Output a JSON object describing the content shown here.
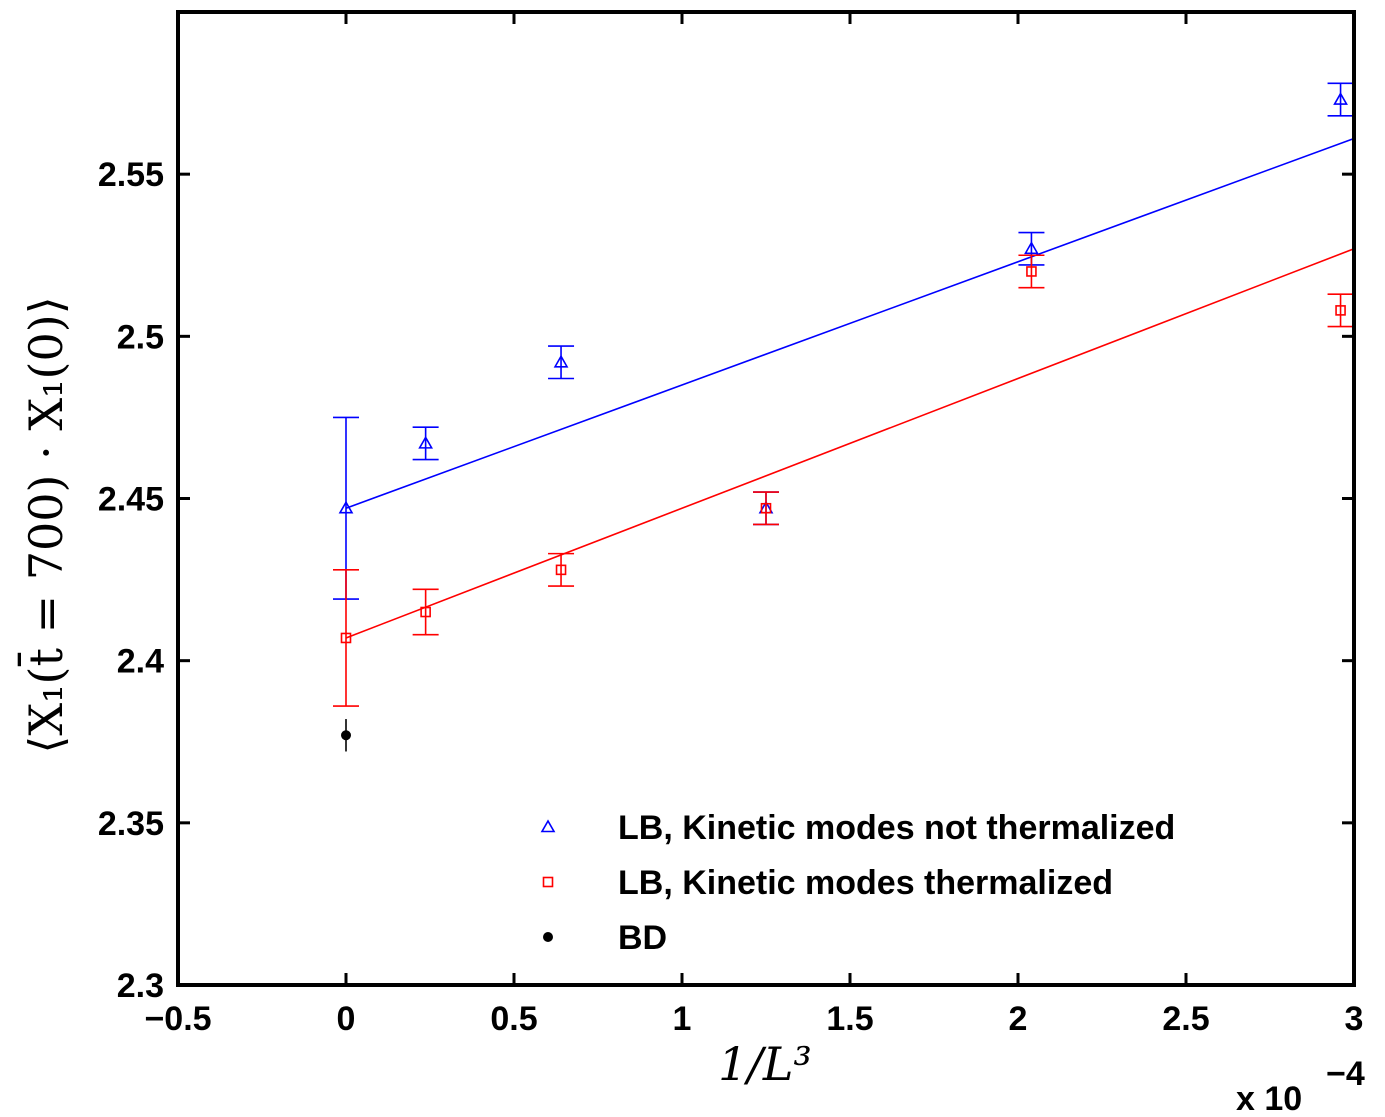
{
  "chart_data": {
    "type": "scatter",
    "xlabel": "1/L³",
    "ylabel": "⟨X₁(t̄ = 700) · X₁(0)⟩",
    "x_multiplier_label": "x 10",
    "x_multiplier_exponent": "−4",
    "xlim": [
      -0.5,
      3
    ],
    "ylim": [
      2.3,
      2.6
    ],
    "xticks": [
      -0.5,
      0,
      0.5,
      1,
      1.5,
      2,
      2.5,
      3
    ],
    "xtick_labels": [
      "−0.5",
      "0",
      "0.5",
      "1",
      "1.5",
      "2",
      "2.5",
      "3"
    ],
    "yticks": [
      2.3,
      2.35,
      2.4,
      2.45,
      2.5,
      2.55
    ],
    "ytick_labels": [
      "2.3",
      "2.35",
      "2.4",
      "2.45",
      "2.5",
      "2.55"
    ],
    "legend_position": "bottom-right",
    "series": [
      {
        "name": "LB, Kinetic modes not thermalized",
        "color": "#0000ff",
        "marker": "triangle",
        "x": [
          0,
          0.237,
          0.64,
          1.25,
          2.04,
          2.96
        ],
        "y": [
          2.447,
          2.467,
          2.492,
          2.447,
          2.527,
          2.573
        ],
        "err": [
          0.028,
          0.005,
          0.005,
          0.005,
          0.005,
          0.005
        ]
      },
      {
        "name": "LB, Kinetic modes thermalized",
        "color": "#ff0000",
        "marker": "square",
        "x": [
          0,
          0.237,
          0.64,
          1.25,
          2.04,
          2.96
        ],
        "y": [
          2.407,
          2.415,
          2.428,
          2.447,
          2.52,
          2.508
        ],
        "err": [
          0.021,
          0.007,
          0.005,
          0.005,
          0.005,
          0.005
        ]
      },
      {
        "name": "BD",
        "color": "#000000",
        "marker": "dot",
        "x": [
          0
        ],
        "y": [
          2.377
        ],
        "err": [
          0.005
        ]
      }
    ],
    "fit_lines": [
      {
        "color": "#0000ff",
        "x": [
          0,
          3
        ],
        "y": [
          2.447,
          2.561
        ]
      },
      {
        "color": "#ff0000",
        "x": [
          0,
          3
        ],
        "y": [
          2.407,
          2.527
        ]
      }
    ]
  }
}
